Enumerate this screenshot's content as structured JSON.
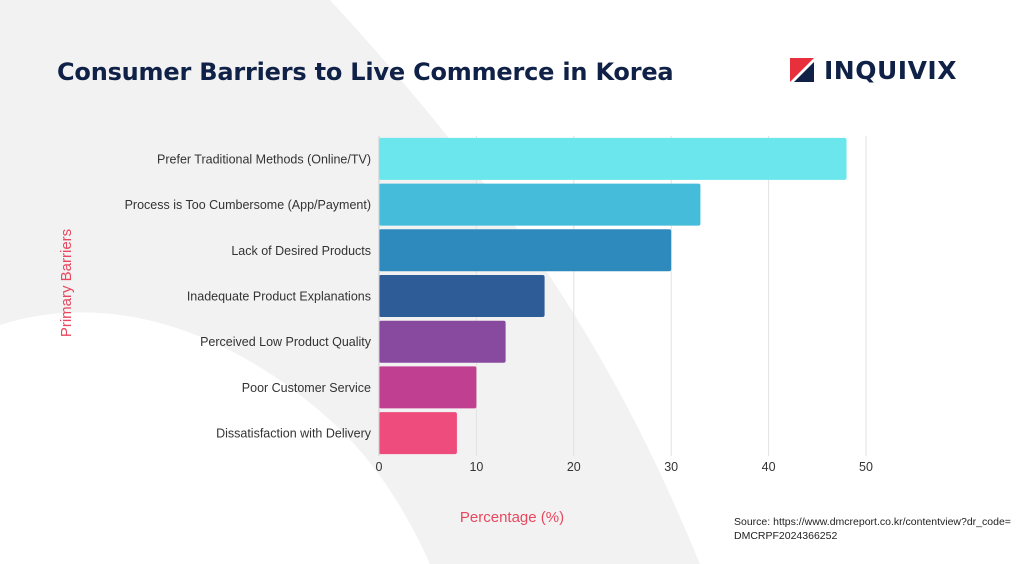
{
  "header": {
    "title": "Consumer Barriers to Live Commerce in Korea",
    "logo_text": "INQUIVIX"
  },
  "source_text": "Source: https://www.dmcreport.co.kr/contentview?dr_code=DMCRPF2024366252",
  "colors": {
    "title": "#0f2146",
    "axis_label": "#e8475e",
    "logo_red": "#e8303c",
    "logo_navy": "#0f2146"
  },
  "chart_data": {
    "type": "bar",
    "orientation": "horizontal",
    "title": "",
    "xlabel": "Percentage (%)",
    "ylabel": "Primary Barriers",
    "xlim": [
      0,
      50
    ],
    "xticks": [
      0,
      10,
      20,
      30,
      40,
      50
    ],
    "grid": true,
    "categories": [
      "Prefer Traditional Methods (Online/TV)",
      "Process is Too Cumbersome (App/Payment)",
      "Lack of Desired Products",
      "Inadequate Product Explanations",
      "Perceived Low Product Quality",
      "Poor Customer Service",
      "Dissatisfaction with Delivery"
    ],
    "values": [
      48,
      33,
      30,
      17,
      13,
      10,
      8
    ],
    "bar_colors": [
      "#6ae6ec",
      "#45bcd9",
      "#2e89bd",
      "#2e5c96",
      "#874a9f",
      "#c13f91",
      "#ee4c7d"
    ]
  }
}
